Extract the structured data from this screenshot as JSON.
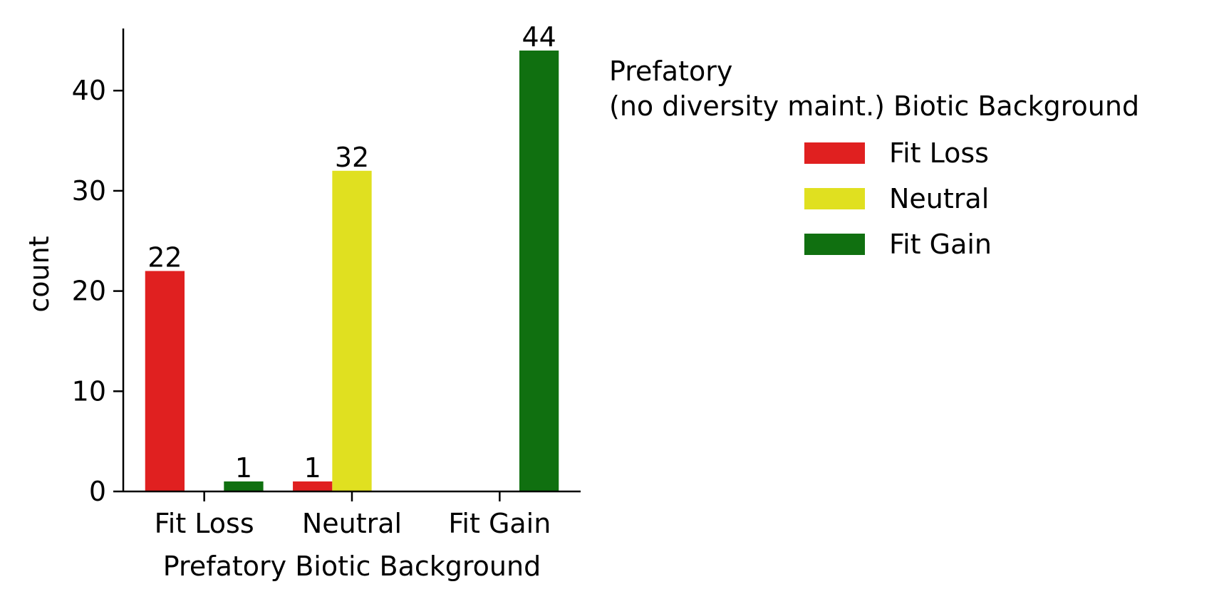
{
  "chart_data": {
    "type": "bar",
    "categories": [
      "Fit Loss",
      "Neutral",
      "Fit Gain"
    ],
    "series": [
      {
        "name": "Fit Loss",
        "color": "#e02020",
        "values": [
          22,
          1,
          0
        ]
      },
      {
        "name": "Neutral",
        "color": "#e0e020",
        "values": [
          0,
          32,
          0
        ]
      },
      {
        "name": "Fit Gain",
        "color": "#107010",
        "values": [
          1,
          0,
          44
        ]
      }
    ],
    "data_labels": [
      {
        "category": "Fit Loss",
        "series": "Fit Loss",
        "text": "22"
      },
      {
        "category": "Fit Loss",
        "series": "Fit Gain",
        "text": "1"
      },
      {
        "category": "Neutral",
        "series": "Fit Loss",
        "text": "1"
      },
      {
        "category": "Neutral",
        "series": "Neutral",
        "text": "32"
      },
      {
        "category": "Fit Gain",
        "series": "Fit Gain",
        "text": "44"
      }
    ],
    "xlabel": "Prefatory Biotic Background",
    "ylabel": "count",
    "ylim": [
      0,
      46.2
    ],
    "yticks": [
      0,
      10,
      20,
      30,
      40
    ],
    "grid": false,
    "legend": {
      "title_line1": "Prefatory",
      "title_line2": "(no diversity maint.) Biotic Background",
      "placement": "outside-right"
    }
  }
}
